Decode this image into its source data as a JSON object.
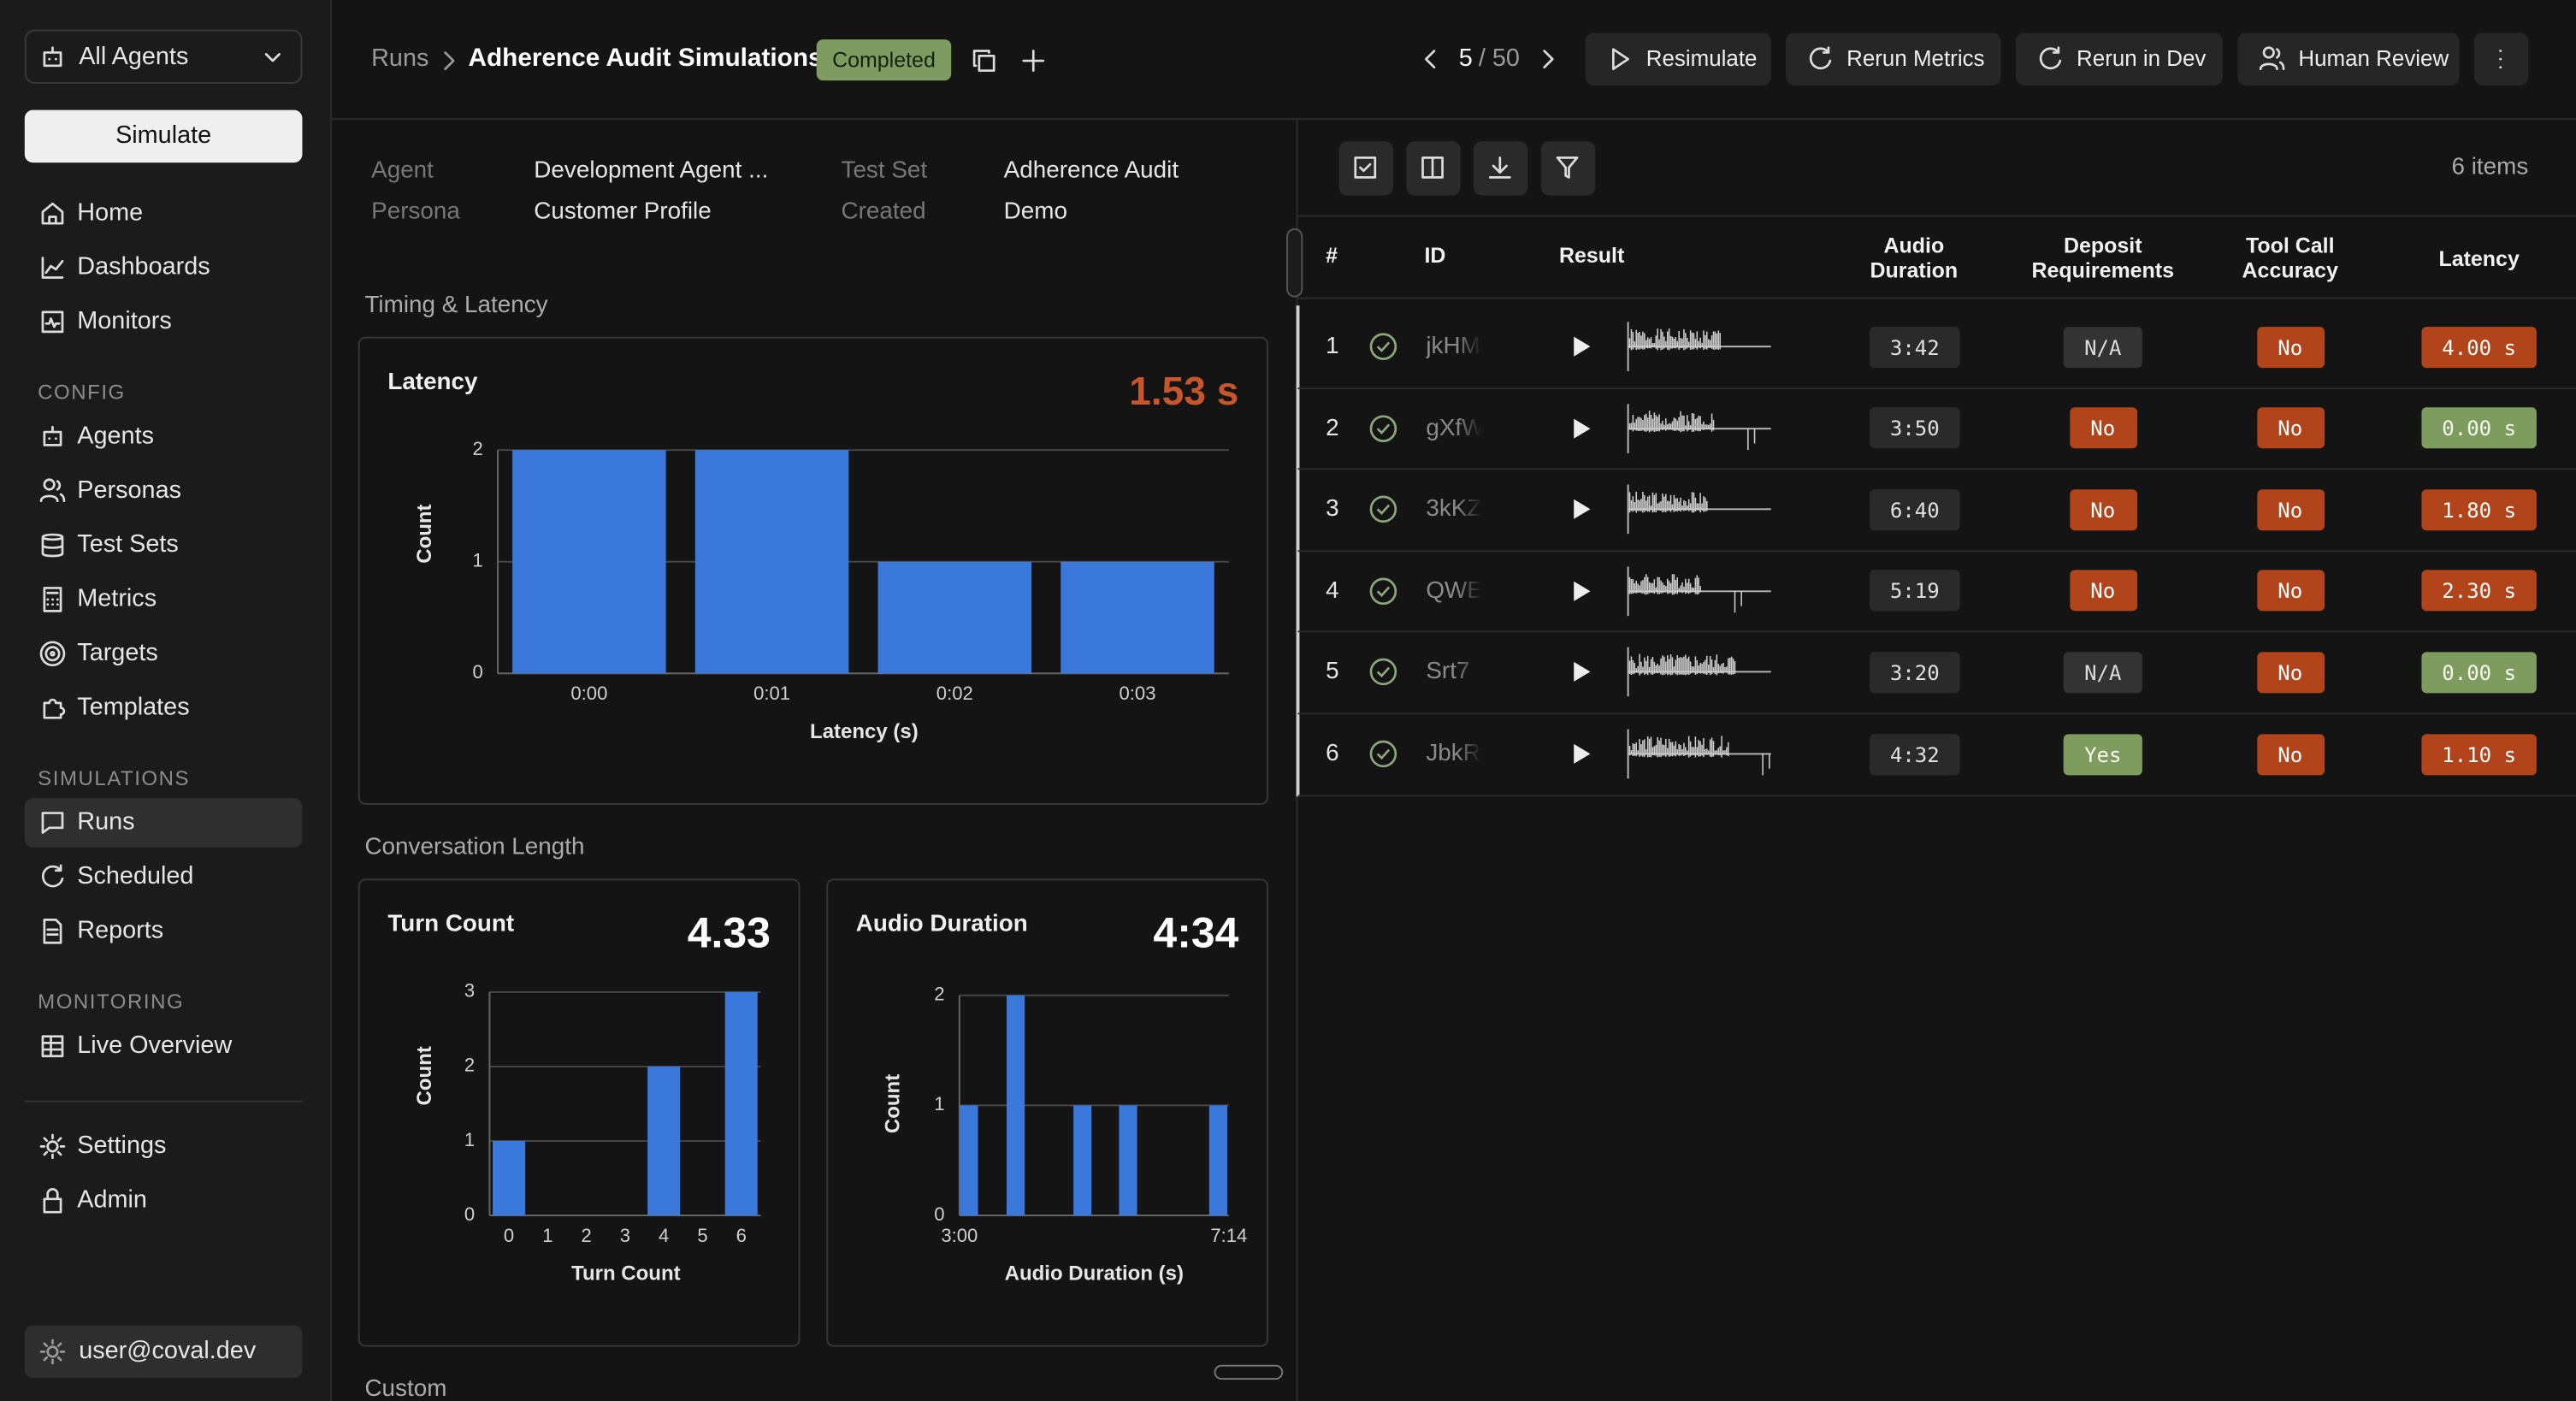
{
  "sidebar": {
    "agent_selector": "All Agents",
    "simulate": "Simulate",
    "groups": [
      {
        "items": [
          {
            "label": "Home"
          },
          {
            "label": "Dashboards"
          },
          {
            "label": "Monitors"
          }
        ]
      },
      {
        "title": "CONFIG",
        "items": [
          {
            "label": "Agents"
          },
          {
            "label": "Personas"
          },
          {
            "label": "Test Sets"
          },
          {
            "label": "Metrics"
          },
          {
            "label": "Targets"
          },
          {
            "label": "Templates"
          }
        ]
      },
      {
        "title": "SIMULATIONS",
        "items": [
          {
            "label": "Runs",
            "active": true
          },
          {
            "label": "Scheduled"
          },
          {
            "label": "Reports"
          }
        ]
      },
      {
        "title": "MONITORING",
        "items": [
          {
            "label": "Live Overview"
          }
        ]
      }
    ],
    "bottom": [
      {
        "label": "Settings"
      },
      {
        "label": "Admin"
      }
    ],
    "user": "user@coval.dev"
  },
  "header": {
    "breadcrumb": "Runs",
    "title": "Adherence Audit Simulations",
    "status": "Completed",
    "page_current": "5",
    "page_total": "/ 50",
    "actions": [
      "Resimulate",
      "Rerun Metrics",
      "Rerun in Dev",
      "Human Review"
    ]
  },
  "meta": [
    {
      "label": "Agent",
      "value": "Development Agent ..."
    },
    {
      "label": "Persona",
      "value": "Customer Profile"
    },
    {
      "label": "Test Set",
      "value": "Adherence Audit"
    },
    {
      "label": "Created",
      "value": "Demo"
    }
  ],
  "sections": {
    "timing": "Timing & Latency",
    "conversation": "Conversation Length",
    "custom": "Custom"
  },
  "chart_data": [
    {
      "type": "bar",
      "title": "Latency",
      "summary": "1.53 s",
      "summary_color": "#c9552c",
      "x_label": "Latency (s)",
      "y_label": "Count",
      "color": "#3a78dc",
      "grid": true,
      "categories": [
        "0:00",
        "0:01",
        "0:02",
        "0:03"
      ],
      "values": [
        2,
        2,
        1,
        1
      ],
      "ylim": [
        0,
        2
      ],
      "yticks": [
        0,
        1,
        2
      ]
    },
    {
      "type": "bar",
      "title": "Turn Count",
      "summary": "4.33",
      "summary_color": "#ffffff",
      "x_label": "Turn Count",
      "y_label": "Count",
      "color": "#3a78dc",
      "grid": true,
      "categories": [
        "0",
        "1",
        "2",
        "3",
        "4",
        "5",
        "6"
      ],
      "values": [
        1,
        0,
        0,
        0,
        2,
        0,
        3
      ],
      "ylim": [
        0,
        3
      ],
      "yticks": [
        0,
        1,
        2,
        3
      ]
    },
    {
      "type": "bar",
      "title": "Audio Duration",
      "summary": "4:34",
      "summary_color": "#ffffff",
      "x_label": "Audio Duration (s)",
      "y_label": "Count",
      "color": "#3a78dc",
      "grid": true,
      "x": [
        189,
        233,
        296,
        339,
        424
      ],
      "values": [
        1,
        2,
        1,
        1,
        1
      ],
      "xlim": [
        180,
        434
      ],
      "xticks": [
        {
          "value": 180,
          "label": "3:00"
        },
        {
          "value": 434,
          "label": "7:14"
        }
      ],
      "ylim": [
        0,
        2
      ],
      "yticks": [
        0,
        1,
        2
      ]
    }
  ],
  "table": {
    "count": "6 items",
    "columns": [
      "#",
      "ID",
      "Result",
      "Audio Duration",
      "Deposit Requirements",
      "Tool Call Accuracy",
      "Latency"
    ],
    "rows": [
      {
        "index": 1,
        "id": "jkHM",
        "duration": "3:42",
        "deposit": {
          "text": "N/A",
          "tone": "neutral"
        },
        "tool": {
          "text": "No",
          "tone": "bad"
        },
        "latency": {
          "text": "4.00 s",
          "tone": "bad"
        }
      },
      {
        "index": 2,
        "id": "gXfW",
        "duration": "3:50",
        "deposit": {
          "text": "No",
          "tone": "bad"
        },
        "tool": {
          "text": "No",
          "tone": "bad"
        },
        "latency": {
          "text": "0.00 s",
          "tone": "good"
        }
      },
      {
        "index": 3,
        "id": "3kKZ",
        "duration": "6:40",
        "deposit": {
          "text": "No",
          "tone": "bad"
        },
        "tool": {
          "text": "No",
          "tone": "bad"
        },
        "latency": {
          "text": "1.80 s",
          "tone": "bad"
        }
      },
      {
        "index": 4,
        "id": "QWEw",
        "duration": "5:19",
        "deposit": {
          "text": "No",
          "tone": "bad"
        },
        "tool": {
          "text": "No",
          "tone": "bad"
        },
        "latency": {
          "text": "2.30 s",
          "tone": "bad"
        }
      },
      {
        "index": 5,
        "id": "Srt7",
        "duration": "3:20",
        "deposit": {
          "text": "N/A",
          "tone": "neutral"
        },
        "tool": {
          "text": "No",
          "tone": "bad"
        },
        "latency": {
          "text": "0.00 s",
          "tone": "good"
        }
      },
      {
        "index": 6,
        "id": "JbkR",
        "duration": "4:32",
        "deposit": {
          "text": "Yes",
          "tone": "good"
        },
        "tool": {
          "text": "No",
          "tone": "bad"
        },
        "latency": {
          "text": "1.10 s",
          "tone": "bad"
        }
      }
    ]
  }
}
